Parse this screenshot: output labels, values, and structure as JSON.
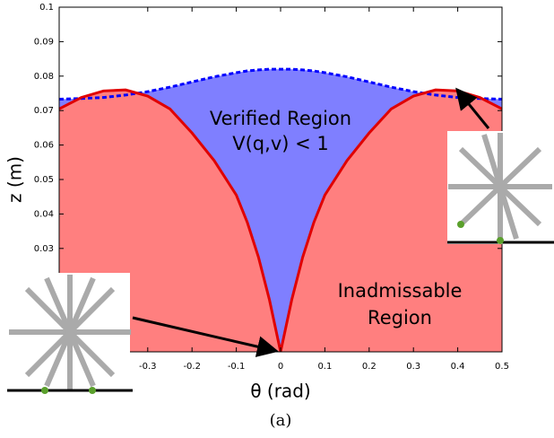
{
  "chart_data": {
    "type": "area",
    "xlabel": "θ (rad)",
    "ylabel": "z (m)",
    "caption": "(a)",
    "annotations": [
      "Verified Region",
      "V(q,v) < 1",
      "Inadmissable",
      "Region"
    ],
    "x": [
      -0.5,
      -0.45,
      -0.4,
      -0.35,
      -0.3,
      -0.25,
      -0.2,
      -0.15,
      -0.1,
      -0.075,
      -0.05,
      -0.025,
      0,
      0.025,
      0.05,
      0.075,
      0.1,
      0.15,
      0.2,
      0.25,
      0.3,
      0.35,
      0.4,
      0.45,
      0.5
    ],
    "series": [
      {
        "color": "#0000ff",
        "fill": "#7f7fff",
        "dashed": true,
        "values": [
          0.0733,
          0.0735,
          0.0738,
          0.0745,
          0.0755,
          0.0768,
          0.0783,
          0.0798,
          0.081,
          0.0815,
          0.0818,
          0.082,
          0.082,
          0.082,
          0.0818,
          0.0815,
          0.081,
          0.0798,
          0.0783,
          0.0768,
          0.0755,
          0.0745,
          0.0738,
          0.0735,
          0.0733
        ]
      },
      {
        "color": "#e00000",
        "fill": "#ff7f7f",
        "dashed": false,
        "values": [
          0.0705,
          0.0738,
          0.0757,
          0.076,
          0.0742,
          0.0705,
          0.0635,
          0.0555,
          0.0455,
          0.0375,
          0.0275,
          0.015,
          0,
          0.015,
          0.0275,
          0.0375,
          0.0455,
          0.0555,
          0.0635,
          0.0705,
          0.0742,
          0.076,
          0.0757,
          0.0738,
          0.0705
        ]
      }
    ],
    "xlim": [
      -0.5,
      0.5
    ],
    "ylim": [
      0,
      0.1
    ],
    "xticks": [
      -0.3,
      -0.2,
      -0.1,
      0,
      0.1,
      0.2,
      0.3,
      0.4,
      0.5
    ],
    "yticks": [
      0.03,
      0.04,
      0.05,
      0.06,
      0.07,
      0.08,
      0.09,
      0.1
    ]
  }
}
